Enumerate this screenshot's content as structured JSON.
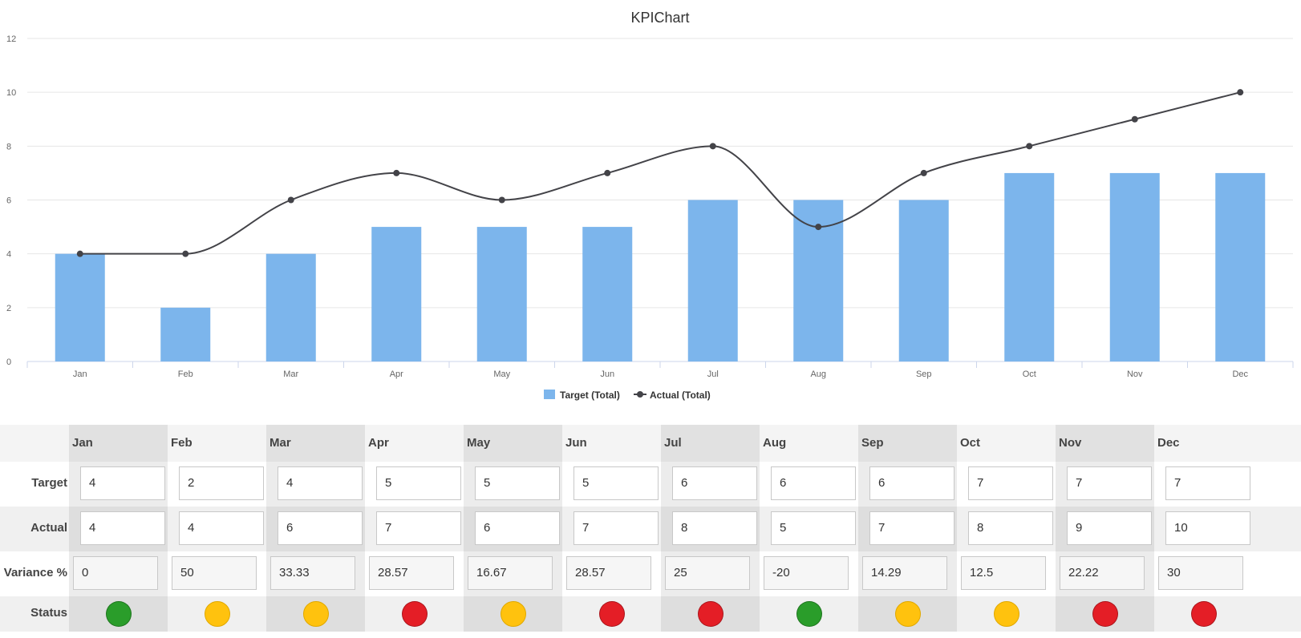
{
  "chart_data": {
    "type": "bar",
    "title": "KPIChart",
    "categories": [
      "Jan",
      "Feb",
      "Mar",
      "Apr",
      "May",
      "Jun",
      "Jul",
      "Aug",
      "Sep",
      "Oct",
      "Nov",
      "Dec"
    ],
    "series": [
      {
        "name": "Target (Total)",
        "type": "bar",
        "values": [
          4,
          2,
          4,
          5,
          5,
          5,
          6,
          6,
          6,
          7,
          7,
          7
        ],
        "color": "#7cb5ec"
      },
      {
        "name": "Actual (Total)",
        "type": "line",
        "values": [
          4,
          4,
          6,
          7,
          6,
          7,
          8,
          5,
          7,
          8,
          9,
          10
        ],
        "color": "#434348"
      }
    ],
    "ylim": [
      0,
      12
    ],
    "yticks": [
      "0",
      "2",
      "4",
      "6",
      "8",
      "10",
      "12"
    ],
    "grid": true,
    "legend_position": "bottom-center"
  },
  "table": {
    "row_labels": {
      "target": "Target",
      "actual": "Actual",
      "variance": "Variance %",
      "status": "Status"
    },
    "months": [
      "Jan",
      "Feb",
      "Mar",
      "Apr",
      "May",
      "Jun",
      "Jul",
      "Aug",
      "Sep",
      "Oct",
      "Nov",
      "Dec"
    ],
    "target": [
      "4",
      "2",
      "4",
      "5",
      "5",
      "5",
      "6",
      "6",
      "6",
      "7",
      "7",
      "7"
    ],
    "actual": [
      "4",
      "4",
      "6",
      "7",
      "6",
      "7",
      "8",
      "5",
      "7",
      "8",
      "9",
      "10"
    ],
    "variance": [
      "0",
      "50",
      "33.33",
      "28.57",
      "16.67",
      "28.57",
      "25",
      "-20",
      "14.29",
      "12.5",
      "22.22",
      "30"
    ],
    "status": [
      "green",
      "amber",
      "amber",
      "red",
      "amber",
      "red",
      "red",
      "green",
      "amber",
      "amber",
      "red",
      "red"
    ]
  },
  "status_colors": {
    "green": "#2a9d2a",
    "amber": "#ffc20e",
    "red": "#e41e26"
  }
}
